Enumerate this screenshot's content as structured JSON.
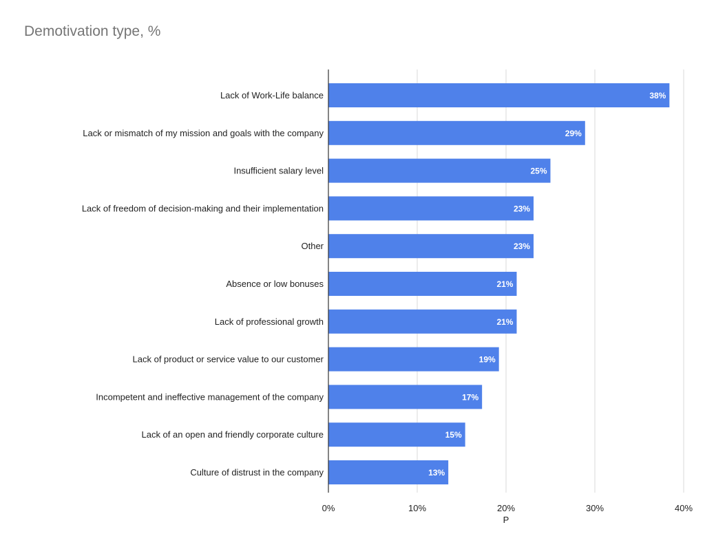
{
  "chart_data": {
    "type": "bar",
    "orientation": "horizontal",
    "title": "Demotivation type, %",
    "xlabel": "P",
    "ylabel": "",
    "categories": [
      "Lack of Work-Life balance",
      "Lack or mismatch of my mission and goals with the company",
      "Insufficient salary level",
      "Lack of freedom of decision-making and their implementation",
      "Other",
      "Absence or low bonuses",
      "Lack of professional growth",
      "Lack of product or service value to our customer",
      "Incompetent and ineffective management of the company",
      "Lack of an open and friendly corporate culture",
      "Culture of distrust in the company"
    ],
    "values": [
      38.4,
      28.9,
      25.0,
      23.1,
      23.1,
      21.2,
      21.2,
      19.2,
      17.3,
      15.4,
      13.5
    ],
    "data_labels": [
      "38%",
      "29%",
      "25%",
      "23%",
      "23%",
      "21%",
      "21%",
      "19%",
      "17%",
      "15%",
      "13%"
    ],
    "xlim": [
      0,
      40
    ],
    "ticks": [
      0,
      10,
      20,
      30,
      40
    ],
    "tick_labels": [
      "0%",
      "10%",
      "20%",
      "30%",
      "40%"
    ],
    "grid": true,
    "legend": "none",
    "colors": {
      "bar": "#4f81ea",
      "grid": "#d9d9d9",
      "axis": "#333333",
      "title": "#757575",
      "text": "#222222",
      "data_label": "#ffffff"
    }
  }
}
